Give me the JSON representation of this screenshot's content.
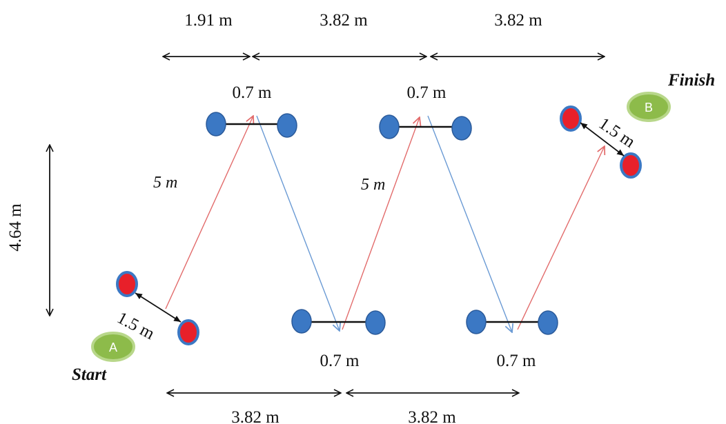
{
  "labels": {
    "top_dim_1": "1.91 m",
    "top_dim_2": "3.82 m",
    "top_dim_3": "3.82 m",
    "bottom_dim_1": "3.82 m",
    "bottom_dim_2": "3.82 m",
    "height_dim": "4.64 m",
    "gate_top_1": "0.7 m",
    "gate_top_2": "0.7 m",
    "gate_bottom_1": "0.7 m",
    "gate_bottom_2": "0.7 m",
    "diag_1": "5 m",
    "diag_2": "5 m",
    "start_gap": "1.5 m",
    "finish_gap": "1.5 m",
    "start_text": "Start",
    "finish_text": "Finish",
    "point_a": "A",
    "point_b": "B"
  },
  "colors": {
    "cone_blue": "#3b78c4",
    "cone_red": "#e8202a",
    "marker_green": "#8dbb4a",
    "path_red": "#e26b6b",
    "path_blue": "#6a9ad4"
  }
}
